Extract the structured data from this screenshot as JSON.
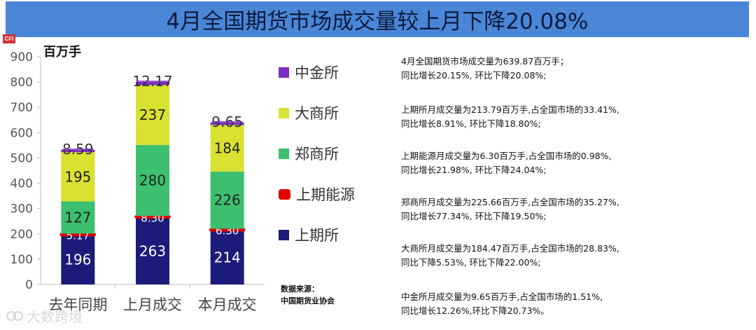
{
  "title": "4月全国期货市场成交量较上月下降20.08%",
  "logo_text": "CFI",
  "unit_label": "百万手",
  "legend": [
    {
      "name": "中金所",
      "color": "#7b2fbf",
      "shape": "square"
    },
    {
      "name": "大商所",
      "color": "#d8e230",
      "shape": "square"
    },
    {
      "name": "郑商所",
      "color": "#3cc070",
      "shape": "square"
    },
    {
      "name": "上期能源",
      "color": "#e00000",
      "shape": "rounded"
    },
    {
      "name": "上期所",
      "color": "#1b1b7a",
      "shape": "square"
    }
  ],
  "chart_data": {
    "type": "bar",
    "stacked": true,
    "categories": [
      "去年同期",
      "上月成交",
      "本月成交"
    ],
    "series": [
      {
        "name": "上期所",
        "values": [
          196,
          263,
          214
        ],
        "labels": [
          "196",
          "263",
          "214"
        ],
        "color": "#1b1b7a"
      },
      {
        "name": "上期能源",
        "values": [
          5.17,
          8.3,
          6.3
        ],
        "labels": [
          "5.17",
          "8.30",
          "6.30"
        ],
        "color": "#e00000"
      },
      {
        "name": "郑商所",
        "values": [
          127,
          280,
          226
        ],
        "labels": [
          "127",
          "280",
          "226"
        ],
        "color": "#3cc070"
      },
      {
        "name": "大商所",
        "values": [
          195,
          237,
          184
        ],
        "labels": [
          "195",
          "237",
          "184"
        ],
        "color": "#d8e230"
      },
      {
        "name": "中金所",
        "values": [
          8.59,
          12.17,
          9.65
        ],
        "labels": [
          "8.59",
          "12.17",
          "9.65"
        ],
        "color": "#7b2fbf"
      }
    ],
    "ylim": [
      0,
      900
    ],
    "yticks": [
      "0",
      "100",
      "200",
      "300",
      "400",
      "500",
      "600",
      "700",
      "800",
      "900"
    ],
    "ylabel": "百万手",
    "grid": false
  },
  "source": {
    "line1": "数据来源：",
    "line2": "中国期货业协会"
  },
  "notes": [
    {
      "line1": "4月全国期货市场成交量为639.87百万手；",
      "line2": "同比增长20.15%, 环比下降20.08%;"
    },
    {
      "line1": "上期所月成交量为213.79百万手,占全国市场的33.41%,",
      "line2": "同比增长8.91%, 环比下降18.80%;"
    },
    {
      "line1": "上期能源月成交量为6.30百万手,占全国市场的0.98%,",
      "line2": "同比增长21.98%, 环比下降24.04%;"
    },
    {
      "line1": "郑商所月成交量为225.66百万手,占全国市场的35.27%,",
      "line2": "同比增长77.34%, 环比下降19.50%;"
    },
    {
      "line1": "大商所月成交量为184.47百万手,占全国市场的28.83%,",
      "line2": "同比下降5.53%, 环比下降22.00%;"
    },
    {
      "line1": "中金所月成交量为9.65百万手,占全国市场的1.51%,",
      "line2": "同比增长12.26%,环比下降20.73%。"
    }
  ],
  "watermark": "大数跨境"
}
